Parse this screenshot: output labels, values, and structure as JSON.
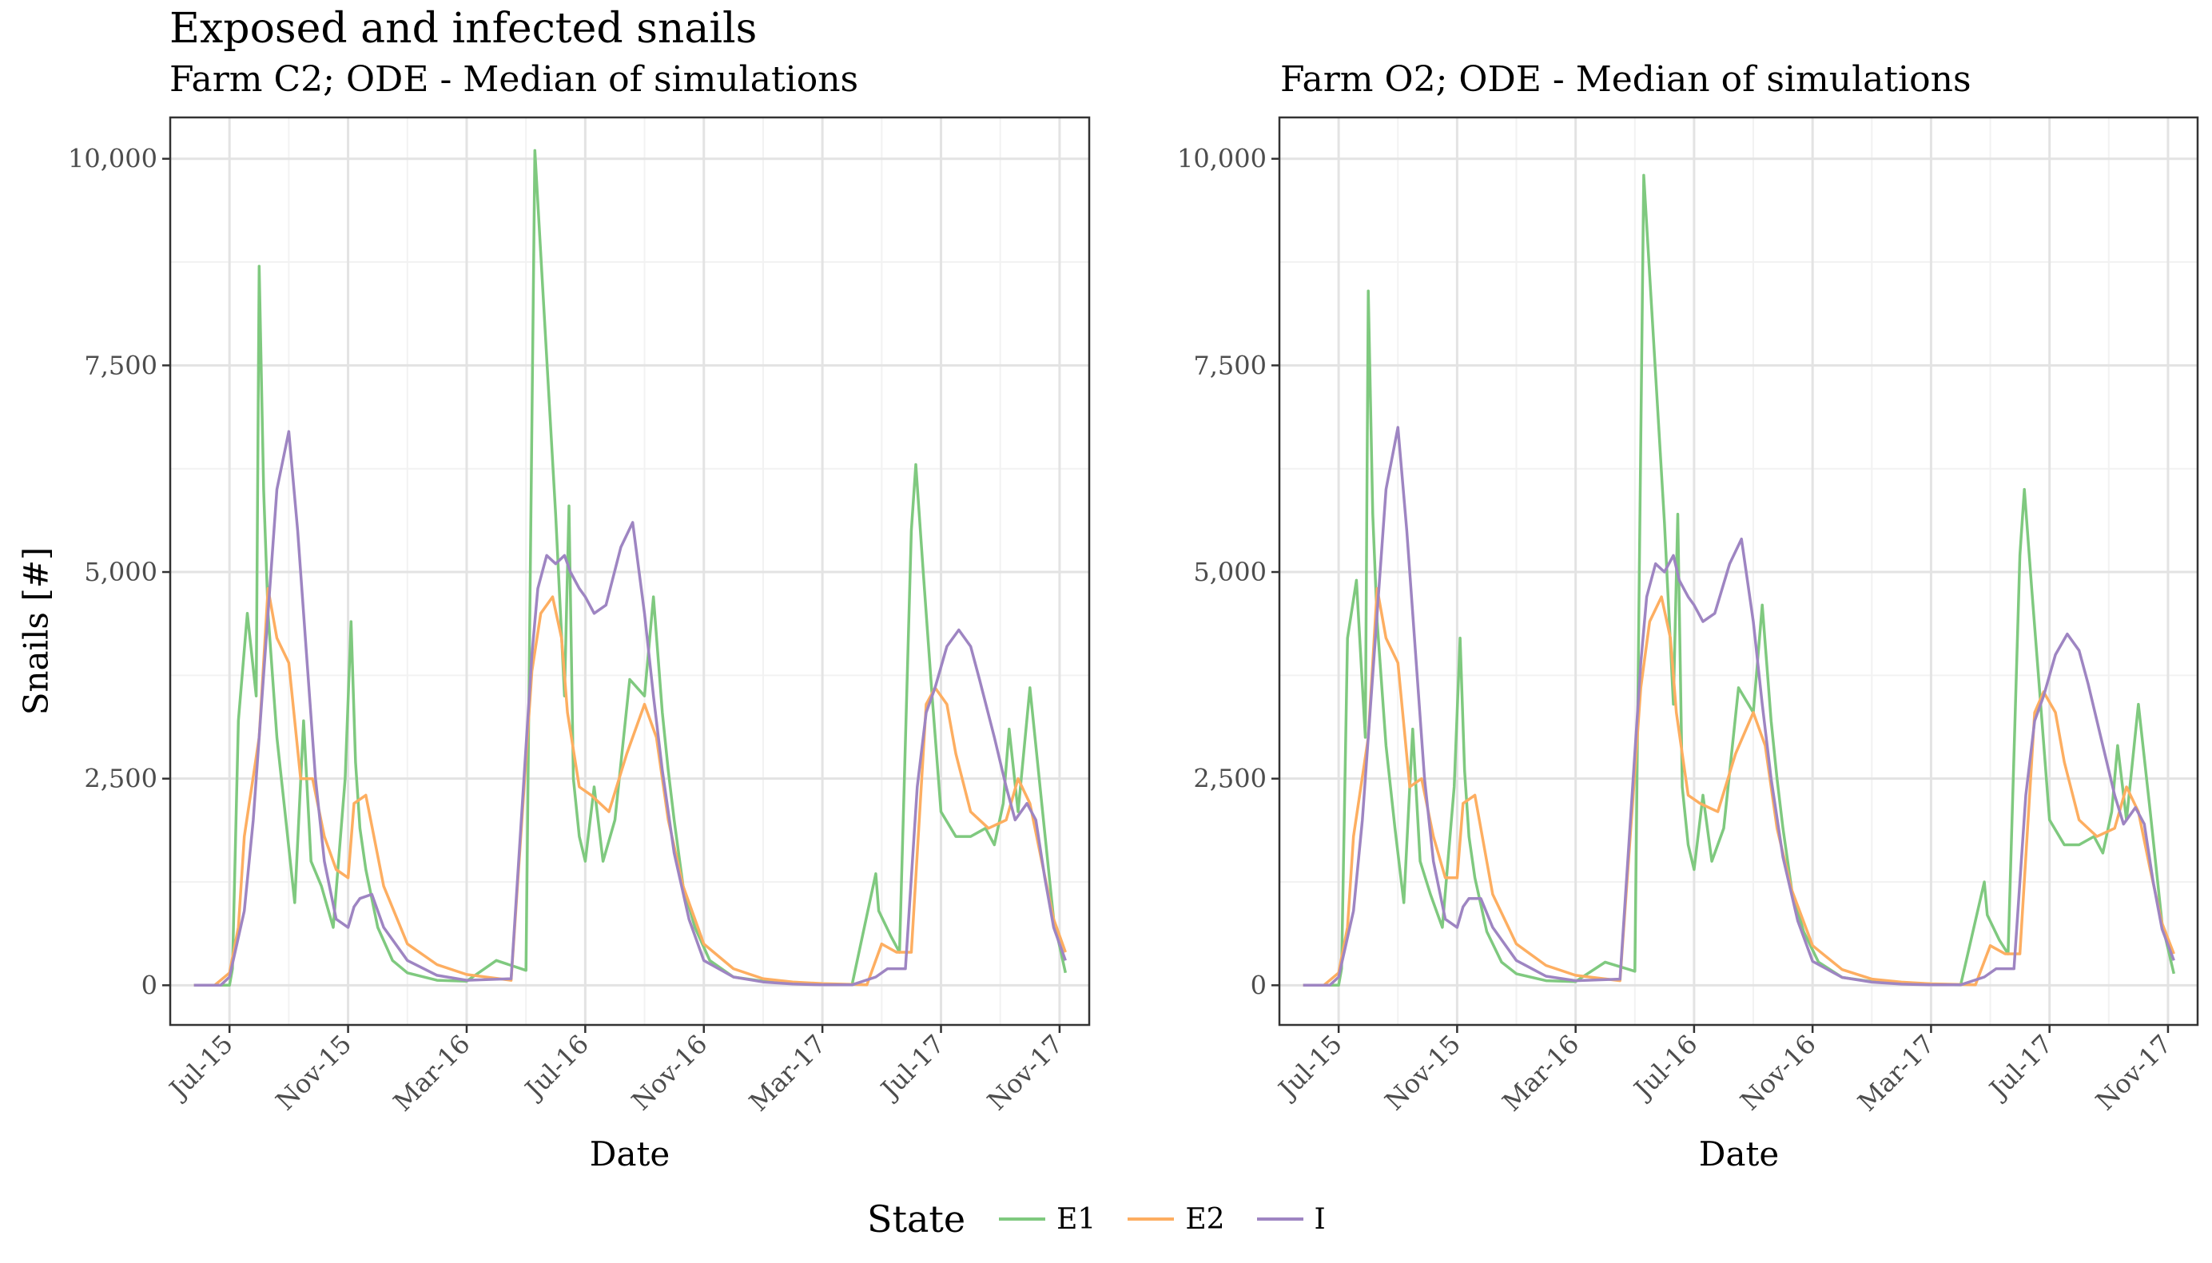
{
  "title": "Exposed and infected snails",
  "y_axis_label": "Snails [#]",
  "legend": {
    "title": "State",
    "items": [
      {
        "key": "E1",
        "label": "E1",
        "color": "#7fc97f"
      },
      {
        "key": "E2",
        "label": "E2",
        "color": "#fdae61"
      },
      {
        "key": "I",
        "label": "I",
        "color": "#9e85c2"
      }
    ]
  },
  "chart_data": [
    {
      "type": "line",
      "subtitle": "Farm C2; ODE - Median of simulations",
      "xlabel": "Date",
      "ylabel": "Snails [#]",
      "x_ticks": [
        "Jul-15",
        "Nov-15",
        "Mar-16",
        "Jul-16",
        "Nov-16",
        "Mar-17",
        "Jul-17",
        "Nov-17"
      ],
      "y_ticks": [
        "0",
        "2,500",
        "5,000",
        "7,500",
        "10,000"
      ],
      "ylim": [
        -480,
        10500
      ],
      "grid": true,
      "legend_position": "bottom",
      "series": [
        {
          "name": "E1",
          "color": "#7fc97f",
          "x": [
            -1.2,
            -0.5,
            0.0,
            0.1,
            0.3,
            0.6,
            0.9,
            1.0,
            1.15,
            1.3,
            1.6,
            1.9,
            2.2,
            2.5,
            2.75,
            3.1,
            3.5,
            3.9,
            4.1,
            4.25,
            4.4,
            4.6,
            5.0,
            5.5,
            6.0,
            7.0,
            8.0,
            9.0,
            10.0,
            10.3,
            11.0,
            11.3,
            11.45,
            11.6,
            11.8,
            12.0,
            12.3,
            12.6,
            13.0,
            13.5,
            14.0,
            14.3,
            14.6,
            14.8,
            15.0,
            15.3,
            15.7,
            16.2,
            17.0,
            18.0,
            19.0,
            20.0,
            21.0,
            21.8,
            21.9,
            22.3,
            22.6,
            23.0,
            23.15,
            23.4,
            23.7,
            24.0,
            24.5,
            25.0,
            25.5,
            25.8,
            26.1,
            26.3,
            26.6,
            27.0,
            27.4,
            27.8,
            28.2
          ],
          "values": [
            0,
            0,
            0,
            200,
            3200,
            4500,
            3500,
            8700,
            6000,
            4500,
            3000,
            2000,
            1000,
            3200,
            1500,
            1200,
            700,
            2500,
            4400,
            2700,
            1900,
            1400,
            700,
            300,
            150,
            60,
            50,
            300,
            180,
            10100,
            5700,
            3500,
            5800,
            2500,
            1800,
            1500,
            2400,
            1500,
            2000,
            3700,
            3500,
            4700,
            3300,
            2600,
            2000,
            1200,
            700,
            300,
            100,
            50,
            20,
            10,
            5,
            1350,
            900,
            600,
            400,
            5500,
            6300,
            5000,
            3500,
            2100,
            1800,
            1800,
            1900,
            1700,
            2200,
            3100,
            2100,
            3600,
            2200,
            800,
            150
          ]
        },
        {
          "name": "E2",
          "color": "#fdae61",
          "x": [
            -1.2,
            -0.5,
            0.0,
            0.3,
            0.5,
            1.0,
            1.3,
            1.6,
            2.0,
            2.4,
            2.8,
            3.2,
            3.6,
            4.0,
            4.2,
            4.6,
            5.2,
            6.0,
            7.0,
            8.0,
            9.5,
            10.2,
            10.5,
            10.9,
            11.2,
            11.4,
            11.8,
            12.2,
            12.8,
            13.4,
            14.0,
            14.4,
            14.8,
            15.3,
            16.0,
            17.0,
            18.0,
            19.0,
            20.0,
            21.5,
            22.0,
            22.5,
            23.0,
            23.5,
            23.8,
            24.2,
            24.5,
            25.0,
            25.6,
            26.2,
            26.6,
            27.0,
            27.4,
            27.8,
            28.2
          ],
          "values": [
            0,
            0,
            150,
            700,
            1800,
            3000,
            4800,
            4200,
            3900,
            2500,
            2500,
            1800,
            1400,
            1300,
            2200,
            2300,
            1200,
            500,
            250,
            130,
            60,
            3800,
            4500,
            4700,
            4200,
            3300,
            2400,
            2300,
            2100,
            2800,
            3400,
            3000,
            2000,
            1200,
            500,
            200,
            80,
            40,
            20,
            5,
            500,
            400,
            400,
            3400,
            3600,
            3400,
            2800,
            2100,
            1900,
            2000,
            2500,
            2200,
            1500,
            800,
            400
          ]
        },
        {
          "name": "I",
          "color": "#9e85c2",
          "x": [
            -1.2,
            -0.3,
            0.0,
            0.5,
            0.8,
            1.2,
            1.6,
            2.0,
            2.3,
            2.6,
            2.9,
            3.2,
            3.6,
            4.0,
            4.2,
            4.4,
            4.8,
            5.2,
            6.0,
            7.0,
            8.0,
            9.5,
            10.2,
            10.4,
            10.7,
            11.0,
            11.3,
            11.5,
            11.8,
            12.0,
            12.3,
            12.7,
            13.2,
            13.6,
            14.0,
            14.3,
            14.6,
            15.0,
            15.5,
            16.0,
            17.0,
            18.0,
            19.0,
            20.0,
            21.0,
            21.8,
            22.2,
            22.5,
            22.8,
            23.2,
            23.5,
            23.8,
            24.2,
            24.6,
            25.0,
            25.3,
            25.8,
            26.2,
            26.5,
            26.9,
            27.2,
            27.5,
            27.8,
            28.2
          ],
          "values": [
            0,
            0,
            100,
            900,
            2000,
            4000,
            6000,
            6700,
            5500,
            4000,
            2500,
            1500,
            800,
            700,
            950,
            1050,
            1100,
            700,
            300,
            120,
            60,
            80,
            4000,
            4800,
            5200,
            5100,
            5200,
            5000,
            4800,
            4700,
            4500,
            4600,
            5300,
            5600,
            4500,
            3500,
            2600,
            1600,
            800,
            300,
            100,
            40,
            15,
            5,
            5,
            100,
            200,
            200,
            200,
            2400,
            3300,
            3600,
            4100,
            4300,
            4100,
            3700,
            3000,
            2400,
            2000,
            2200,
            2000,
            1300,
            700,
            300
          ]
        }
      ]
    },
    {
      "type": "line",
      "subtitle": "Farm O2; ODE - Median of simulations",
      "xlabel": "Date",
      "ylabel": "",
      "x_ticks": [
        "Jul-15",
        "Nov-15",
        "Mar-16",
        "Jul-16",
        "Nov-16",
        "Mar-17",
        "Jul-17",
        "Nov-17"
      ],
      "y_ticks": [
        "0",
        "2,500",
        "5,000",
        "7,500",
        "10,000"
      ],
      "ylim": [
        -480,
        10500
      ],
      "grid": true,
      "legend_position": "bottom",
      "series": [
        {
          "name": "E1",
          "color": "#7fc97f",
          "x": [
            -1.2,
            -0.5,
            0.0,
            0.1,
            0.3,
            0.6,
            0.9,
            1.0,
            1.15,
            1.3,
            1.6,
            1.9,
            2.2,
            2.5,
            2.75,
            3.1,
            3.5,
            3.9,
            4.1,
            4.25,
            4.4,
            4.6,
            5.0,
            5.5,
            6.0,
            7.0,
            8.0,
            9.0,
            10.0,
            10.3,
            11.0,
            11.3,
            11.45,
            11.6,
            11.8,
            12.0,
            12.3,
            12.6,
            13.0,
            13.5,
            14.0,
            14.3,
            14.6,
            14.8,
            15.0,
            15.3,
            15.7,
            16.2,
            17.0,
            18.0,
            19.0,
            20.0,
            21.0,
            21.8,
            21.9,
            22.3,
            22.6,
            23.0,
            23.15,
            23.4,
            23.7,
            24.0,
            24.5,
            25.0,
            25.5,
            25.8,
            26.1,
            26.3,
            26.6,
            27.0,
            27.4,
            27.8,
            28.2
          ],
          "values": [
            0,
            0,
            0,
            200,
            4200,
            4900,
            3000,
            8400,
            5700,
            4400,
            2900,
            1900,
            1000,
            3100,
            1500,
            1100,
            700,
            2400,
            4200,
            2600,
            1800,
            1300,
            650,
            280,
            140,
            55,
            45,
            280,
            170,
            9800,
            5600,
            3400,
            5700,
            2400,
            1700,
            1400,
            2300,
            1500,
            1900,
            3600,
            3300,
            4600,
            3200,
            2500,
            1900,
            1150,
            650,
            280,
            95,
            45,
            18,
            9,
            4,
            1250,
            850,
            550,
            380,
            5200,
            6000,
            4800,
            3400,
            2000,
            1700,
            1700,
            1800,
            1600,
            2100,
            2900,
            2000,
            3400,
            2100,
            750,
            140
          ]
        },
        {
          "name": "E2",
          "color": "#fdae61",
          "x": [
            -1.2,
            -0.5,
            0.0,
            0.3,
            0.5,
            1.0,
            1.3,
            1.6,
            2.0,
            2.4,
            2.8,
            3.2,
            3.6,
            4.0,
            4.2,
            4.6,
            5.2,
            6.0,
            7.0,
            8.0,
            9.5,
            10.2,
            10.5,
            10.9,
            11.2,
            11.4,
            11.8,
            12.2,
            12.8,
            13.4,
            14.0,
            14.4,
            14.8,
            15.3,
            16.0,
            17.0,
            18.0,
            19.0,
            20.0,
            21.5,
            22.0,
            22.5,
            23.0,
            23.5,
            23.8,
            24.2,
            24.5,
            25.0,
            25.6,
            26.2,
            26.6,
            27.0,
            27.4,
            27.8,
            28.2
          ],
          "values": [
            0,
            0,
            150,
            700,
            1800,
            3000,
            4800,
            4200,
            3900,
            2400,
            2500,
            1800,
            1300,
            1300,
            2200,
            2300,
            1100,
            500,
            240,
            120,
            55,
            3600,
            4400,
            4700,
            4200,
            3300,
            2300,
            2200,
            2100,
            2800,
            3300,
            2900,
            1900,
            1150,
            480,
            190,
            75,
            38,
            18,
            5,
            480,
            380,
            380,
            3300,
            3550,
            3300,
            2700,
            2000,
            1800,
            1900,
            2400,
            2100,
            1400,
            750,
            380
          ]
        },
        {
          "name": "I",
          "color": "#9e85c2",
          "x": [
            -1.2,
            -0.3,
            0.0,
            0.5,
            0.8,
            1.2,
            1.6,
            2.0,
            2.3,
            2.6,
            2.9,
            3.2,
            3.6,
            4.0,
            4.2,
            4.4,
            4.8,
            5.2,
            6.0,
            7.0,
            8.0,
            9.5,
            10.2,
            10.4,
            10.7,
            11.0,
            11.3,
            11.5,
            11.8,
            12.0,
            12.3,
            12.7,
            13.2,
            13.6,
            14.0,
            14.3,
            14.6,
            15.0,
            15.5,
            16.0,
            17.0,
            18.0,
            19.0,
            20.0,
            21.0,
            21.8,
            22.2,
            22.5,
            22.8,
            23.2,
            23.5,
            23.8,
            24.2,
            24.6,
            25.0,
            25.3,
            25.8,
            26.2,
            26.5,
            26.9,
            27.2,
            27.5,
            27.8,
            28.2
          ],
          "values": [
            0,
            0,
            100,
            900,
            2000,
            4000,
            6000,
            6750,
            5500,
            4000,
            2500,
            1500,
            800,
            700,
            950,
            1050,
            1050,
            700,
            300,
            110,
            55,
            75,
            3900,
            4700,
            5100,
            5000,
            5200,
            4900,
            4700,
            4600,
            4400,
            4500,
            5100,
            5400,
            4400,
            3400,
            2500,
            1550,
            780,
            290,
            95,
            38,
            14,
            5,
            5,
            100,
            200,
            200,
            200,
            2300,
            3200,
            3500,
            4000,
            4250,
            4050,
            3650,
            2900,
            2300,
            1950,
            2150,
            1950,
            1250,
            680,
            300
          ]
        }
      ]
    }
  ]
}
